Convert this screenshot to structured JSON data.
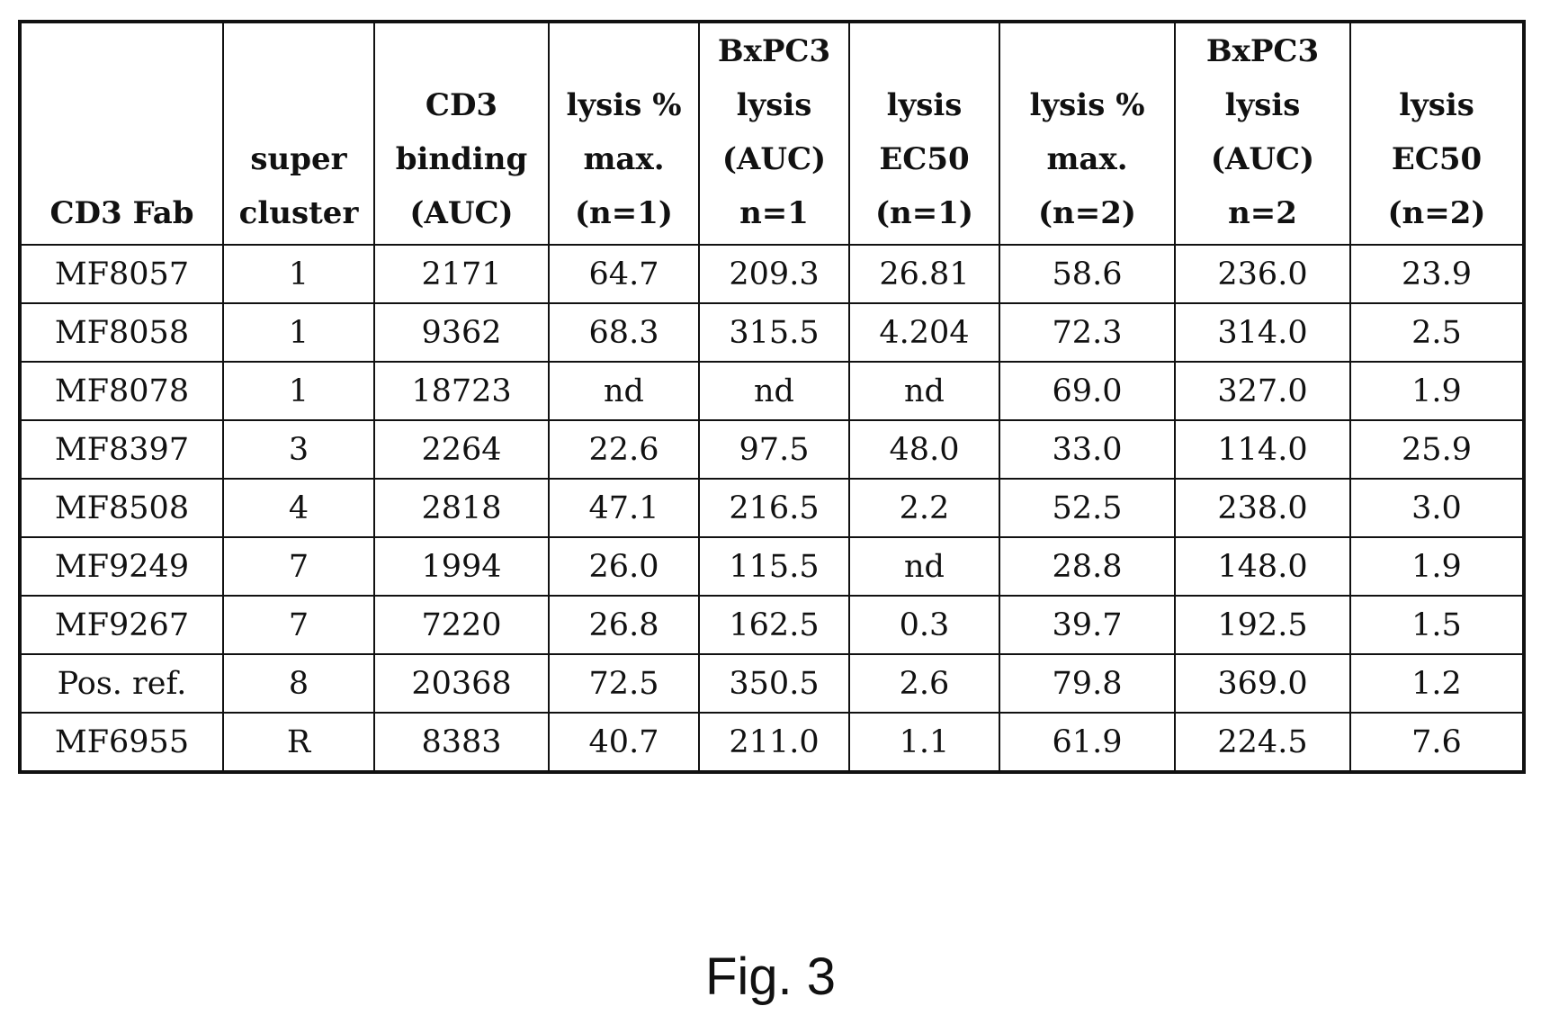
{
  "table": {
    "headers": [
      [
        "CD3 Fab"
      ],
      [
        "super",
        "cluster"
      ],
      [
        "CD3",
        "binding",
        "(AUC)"
      ],
      [
        "lysis %",
        "max.",
        "(n=1)"
      ],
      [
        "BxPC3",
        "lysis",
        "(AUC)",
        "n=1"
      ],
      [
        "lysis",
        "EC50",
        "(n=1)"
      ],
      [
        "lysis %",
        "max.",
        "(n=2)"
      ],
      [
        "BxPC3",
        "lysis",
        "(AUC)",
        "n=2"
      ],
      [
        "lysis",
        "EC50",
        "(n=2)"
      ]
    ],
    "rows": [
      [
        "MF8057",
        "1",
        "2171",
        "64.7",
        "209.3",
        "26.81",
        "58.6",
        "236.0",
        "23.9"
      ],
      [
        "MF8058",
        "1",
        "9362",
        "68.3",
        "315.5",
        "4.204",
        "72.3",
        "314.0",
        "2.5"
      ],
      [
        "MF8078",
        "1",
        "18723",
        "nd",
        "nd",
        "nd",
        "69.0",
        "327.0",
        "1.9"
      ],
      [
        "MF8397",
        "3",
        "2264",
        "22.6",
        "97.5",
        "48.0",
        "33.0",
        "114.0",
        "25.9"
      ],
      [
        "MF8508",
        "4",
        "2818",
        "47.1",
        "216.5",
        "2.2",
        "52.5",
        "238.0",
        "3.0"
      ],
      [
        "MF9249",
        "7",
        "1994",
        "26.0",
        "115.5",
        "nd",
        "28.8",
        "148.0",
        "1.9"
      ],
      [
        "MF9267",
        "7",
        "7220",
        "26.8",
        "162.5",
        "0.3",
        "39.7",
        "192.5",
        "1.5"
      ],
      [
        "Pos. ref.",
        "8",
        "20368",
        "72.5",
        "350.5",
        "2.6",
        "79.8",
        "369.0",
        "1.2"
      ],
      [
        "MF6955",
        "R",
        "8383",
        "40.7",
        "211.0",
        "1.1",
        "61.9",
        "224.5",
        "7.6"
      ]
    ]
  },
  "caption": "Fig. 3"
}
